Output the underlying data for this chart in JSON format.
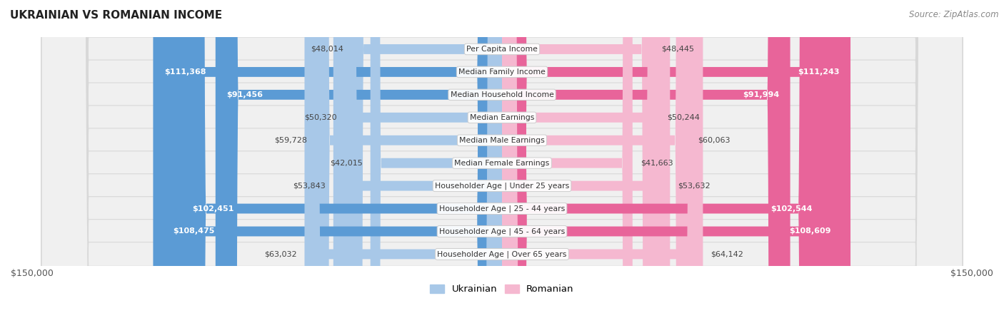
{
  "title": "UKRAINIAN VS ROMANIAN INCOME",
  "source": "Source: ZipAtlas.com",
  "categories": [
    "Per Capita Income",
    "Median Family Income",
    "Median Household Income",
    "Median Earnings",
    "Median Male Earnings",
    "Median Female Earnings",
    "Householder Age | Under 25 years",
    "Householder Age | 25 - 44 years",
    "Householder Age | 45 - 64 years",
    "Householder Age | Over 65 years"
  ],
  "ukrainian_values": [
    48014,
    111368,
    91456,
    50320,
    59728,
    42015,
    53843,
    102451,
    108475,
    63032
  ],
  "romanian_values": [
    48445,
    111243,
    91994,
    50244,
    60063,
    41663,
    53632,
    102544,
    108609,
    64142
  ],
  "ukrainian_labels": [
    "$48,014",
    "$111,368",
    "$91,456",
    "$50,320",
    "$59,728",
    "$42,015",
    "$53,843",
    "$102,451",
    "$108,475",
    "$63,032"
  ],
  "romanian_labels": [
    "$48,445",
    "$111,243",
    "$91,994",
    "$50,244",
    "$60,063",
    "$41,663",
    "$53,632",
    "$102,544",
    "$108,609",
    "$64,142"
  ],
  "max_value": 150000,
  "ukr_color_light": "#a8c8e8",
  "ukr_color_dark": "#5b9bd5",
  "rom_color_light": "#f5b8d0",
  "rom_color_dark": "#e8649a",
  "bar_height": 0.62,
  "row_bg_color": "#f0f0f0",
  "row_border_color": "#d8d8d8",
  "label_inside_threshold": 70000,
  "axis_label": "$150,000",
  "legend_ukrainian": "Ukrainian",
  "legend_romanian": "Romanian",
  "bg_color": "#ffffff",
  "title_color": "#222222",
  "source_color": "#888888",
  "label_dark_color": "#444444",
  "label_light_color": "#ffffff",
  "center_label_bg": "#ffffff",
  "center_label_border": "#cccccc",
  "center_label_color": "#333333"
}
